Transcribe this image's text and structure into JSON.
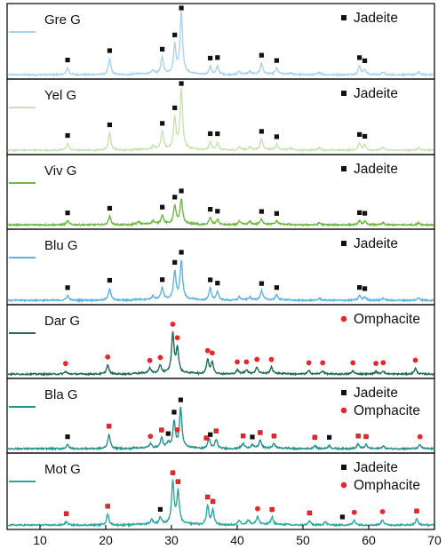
{
  "chart_data": {
    "type": "line",
    "xlim": [
      5,
      70
    ],
    "x_ticks": [
      10,
      20,
      30,
      40,
      50,
      60,
      70
    ],
    "colors": {
      "jadeite_marker": "#111111",
      "omphacite_marker": "#e8262b",
      "frame": "#111111"
    },
    "legend_names": {
      "jadeite": "Jadeite",
      "omphacite": "Omphacite"
    },
    "panels": [
      {
        "name": "Gre G",
        "color": "#a9d3ef",
        "legend": [
          "jadeite"
        ],
        "peaks": [
          {
            "x": 14.2,
            "h": 0.1
          },
          {
            "x": 20.6,
            "h": 0.24
          },
          {
            "x": 27.2,
            "h": 0.05
          },
          {
            "x": 28.6,
            "h": 0.25
          },
          {
            "x": 30.5,
            "h": 0.43
          },
          {
            "x": 31.5,
            "h": 0.93
          },
          {
            "x": 35.9,
            "h": 0.12
          },
          {
            "x": 37.0,
            "h": 0.13
          },
          {
            "x": 40.3,
            "h": 0.04
          },
          {
            "x": 41.9,
            "h": 0.04
          },
          {
            "x": 43.7,
            "h": 0.17
          },
          {
            "x": 46.0,
            "h": 0.09
          },
          {
            "x": 48.2,
            "h": 0.03
          },
          {
            "x": 52.5,
            "h": 0.04
          },
          {
            "x": 58.6,
            "h": 0.13
          },
          {
            "x": 59.4,
            "h": 0.08
          },
          {
            "x": 62.2,
            "h": 0.04
          },
          {
            "x": 67.6,
            "h": 0.04
          }
        ],
        "jadeite_marks": [
          14.2,
          20.6,
          28.6,
          30.5,
          31.5,
          35.9,
          37.0,
          43.7,
          46.0,
          58.6,
          59.4
        ],
        "omphacite_marks": []
      },
      {
        "name": "Yel G",
        "color": "#c9e4b0",
        "legend": [
          "jadeite"
        ],
        "peaks": [
          {
            "x": 14.2,
            "h": 0.1
          },
          {
            "x": 20.6,
            "h": 0.26
          },
          {
            "x": 27.2,
            "h": 0.05
          },
          {
            "x": 28.6,
            "h": 0.27
          },
          {
            "x": 30.5,
            "h": 0.47
          },
          {
            "x": 31.5,
            "h": 0.91
          },
          {
            "x": 35.9,
            "h": 0.12
          },
          {
            "x": 37.0,
            "h": 0.12
          },
          {
            "x": 40.3,
            "h": 0.04
          },
          {
            "x": 41.9,
            "h": 0.04
          },
          {
            "x": 43.7,
            "h": 0.16
          },
          {
            "x": 46.0,
            "h": 0.08
          },
          {
            "x": 48.2,
            "h": 0.03
          },
          {
            "x": 52.5,
            "h": 0.04
          },
          {
            "x": 58.6,
            "h": 0.11
          },
          {
            "x": 59.4,
            "h": 0.08
          },
          {
            "x": 62.2,
            "h": 0.04
          },
          {
            "x": 67.6,
            "h": 0.04
          }
        ],
        "jadeite_marks": [
          14.2,
          20.6,
          28.6,
          30.5,
          31.5,
          35.9,
          37.0,
          43.7,
          46.0,
          58.6,
          59.4
        ],
        "omphacite_marks": []
      },
      {
        "name": "Viv G",
        "color": "#6fb944",
        "legend": [
          "jadeite"
        ],
        "peaks": [
          {
            "x": 14.2,
            "h": 0.06
          },
          {
            "x": 20.6,
            "h": 0.13
          },
          {
            "x": 25.0,
            "h": 0.03
          },
          {
            "x": 27.2,
            "h": 0.05
          },
          {
            "x": 28.6,
            "h": 0.14
          },
          {
            "x": 30.5,
            "h": 0.28
          },
          {
            "x": 31.5,
            "h": 0.38
          },
          {
            "x": 35.9,
            "h": 0.11
          },
          {
            "x": 37.0,
            "h": 0.08
          },
          {
            "x": 40.3,
            "h": 0.04
          },
          {
            "x": 41.9,
            "h": 0.04
          },
          {
            "x": 43.7,
            "h": 0.08
          },
          {
            "x": 46.0,
            "h": 0.05
          },
          {
            "x": 52.5,
            "h": 0.03
          },
          {
            "x": 58.6,
            "h": 0.06
          },
          {
            "x": 59.4,
            "h": 0.05
          },
          {
            "x": 62.2,
            "h": 0.03
          },
          {
            "x": 67.6,
            "h": 0.03
          }
        ],
        "jadeite_marks": [
          14.2,
          20.6,
          28.6,
          30.5,
          31.5,
          35.9,
          37.0,
          43.7,
          46.0,
          58.6,
          59.4
        ],
        "omphacite_marks": []
      },
      {
        "name": "Blu G",
        "color": "#5cb3e6",
        "legend": [
          "jadeite"
        ],
        "peaks": [
          {
            "x": 14.2,
            "h": 0.07
          },
          {
            "x": 20.6,
            "h": 0.18
          },
          {
            "x": 27.2,
            "h": 0.05
          },
          {
            "x": 28.6,
            "h": 0.18
          },
          {
            "x": 30.5,
            "h": 0.42
          },
          {
            "x": 31.5,
            "h": 0.58
          },
          {
            "x": 35.9,
            "h": 0.18
          },
          {
            "x": 37.0,
            "h": 0.13
          },
          {
            "x": 40.3,
            "h": 0.04
          },
          {
            "x": 41.9,
            "h": 0.04
          },
          {
            "x": 43.7,
            "h": 0.13
          },
          {
            "x": 46.0,
            "h": 0.07
          },
          {
            "x": 52.5,
            "h": 0.03
          },
          {
            "x": 58.6,
            "h": 0.07
          },
          {
            "x": 59.4,
            "h": 0.05
          },
          {
            "x": 62.2,
            "h": 0.03
          },
          {
            "x": 67.6,
            "h": 0.04
          }
        ],
        "jadeite_marks": [
          14.2,
          20.6,
          28.6,
          30.5,
          31.5,
          35.9,
          37.0,
          43.7,
          46.0,
          58.6,
          59.4
        ],
        "omphacite_marks": []
      },
      {
        "name": "Dar G",
        "color": "#1e6b57",
        "legend": [
          "omphacite"
        ],
        "peaks": [
          {
            "x": 13.9,
            "h": 0.04
          },
          {
            "x": 20.3,
            "h": 0.14
          },
          {
            "x": 26.7,
            "h": 0.08
          },
          {
            "x": 28.3,
            "h": 0.12
          },
          {
            "x": 30.2,
            "h": 0.61
          },
          {
            "x": 30.9,
            "h": 0.38
          },
          {
            "x": 35.5,
            "h": 0.22
          },
          {
            "x": 36.2,
            "h": 0.18
          },
          {
            "x": 40.0,
            "h": 0.06
          },
          {
            "x": 41.4,
            "h": 0.06
          },
          {
            "x": 43.0,
            "h": 0.1
          },
          {
            "x": 45.2,
            "h": 0.1
          },
          {
            "x": 50.9,
            "h": 0.05
          },
          {
            "x": 53.0,
            "h": 0.05
          },
          {
            "x": 57.6,
            "h": 0.05
          },
          {
            "x": 61.1,
            "h": 0.04
          },
          {
            "x": 62.2,
            "h": 0.05
          },
          {
            "x": 67.1,
            "h": 0.09
          }
        ],
        "jadeite_marks": [],
        "omphacite_marks": [
          13.9,
          20.3,
          26.7,
          28.3,
          30.2,
          30.9,
          35.5,
          36.2,
          40.0,
          41.4,
          43.0,
          45.2,
          50.9,
          53.0,
          57.6,
          61.1,
          62.2,
          67.1
        ]
      },
      {
        "name": "Bla G",
        "color": "#25938c",
        "legend": [
          "jadeite",
          "omphacite"
        ],
        "peaks": [
          {
            "x": 14.2,
            "h": 0.06
          },
          {
            "x": 20.5,
            "h": 0.22
          },
          {
            "x": 26.8,
            "h": 0.06
          },
          {
            "x": 28.5,
            "h": 0.15
          },
          {
            "x": 29.5,
            "h": 0.07
          },
          {
            "x": 30.4,
            "h": 0.4
          },
          {
            "x": 31.4,
            "h": 0.6
          },
          {
            "x": 35.7,
            "h": 0.15
          },
          {
            "x": 36.8,
            "h": 0.14
          },
          {
            "x": 40.9,
            "h": 0.07
          },
          {
            "x": 42.3,
            "h": 0.05
          },
          {
            "x": 43.5,
            "h": 0.12
          },
          {
            "x": 45.6,
            "h": 0.07
          },
          {
            "x": 51.8,
            "h": 0.05
          },
          {
            "x": 54.0,
            "h": 0.05
          },
          {
            "x": 58.4,
            "h": 0.07
          },
          {
            "x": 59.6,
            "h": 0.06
          },
          {
            "x": 62.2,
            "h": 0.04
          },
          {
            "x": 67.8,
            "h": 0.06
          }
        ],
        "jadeite_marks": [
          14.2,
          20.5,
          28.5,
          29.5,
          30.4,
          31.4,
          35.3,
          35.9,
          36.8,
          40.9,
          42.3,
          43.5,
          45.6,
          51.8,
          54.0,
          58.4,
          59.6
        ],
        "omphacite_marks": [
          20.5,
          26.8,
          28.5,
          30.9,
          35.3,
          36.8,
          40.9,
          43.5,
          45.6,
          51.8,
          58.4,
          59.6,
          67.8
        ]
      },
      {
        "name": "Mot G",
        "color": "#2ba8a4",
        "legend": [
          "jadeite",
          "omphacite"
        ],
        "peaks": [
          {
            "x": 14.0,
            "h": 0.05
          },
          {
            "x": 20.3,
            "h": 0.16
          },
          {
            "x": 27.0,
            "h": 0.07
          },
          {
            "x": 28.3,
            "h": 0.1
          },
          {
            "x": 30.2,
            "h": 0.62
          },
          {
            "x": 31.0,
            "h": 0.48
          },
          {
            "x": 35.5,
            "h": 0.28
          },
          {
            "x": 36.3,
            "h": 0.21
          },
          {
            "x": 40.3,
            "h": 0.06
          },
          {
            "x": 41.7,
            "h": 0.07
          },
          {
            "x": 43.1,
            "h": 0.12
          },
          {
            "x": 45.3,
            "h": 0.11
          },
          {
            "x": 51.0,
            "h": 0.06
          },
          {
            "x": 53.4,
            "h": 0.05
          },
          {
            "x": 57.8,
            "h": 0.07
          },
          {
            "x": 62.1,
            "h": 0.08
          },
          {
            "x": 67.3,
            "h": 0.09
          }
        ],
        "jadeite_marks": [
          14.0,
          20.3,
          28.3,
          30.2,
          31.0,
          35.5,
          36.3,
          45.3,
          51.0,
          56.0,
          67.3
        ],
        "omphacite_marks": [
          14.0,
          20.3,
          30.2,
          31.0,
          35.5,
          36.3,
          43.1,
          45.3,
          51.0,
          57.8,
          62.1,
          67.3
        ]
      }
    ]
  }
}
